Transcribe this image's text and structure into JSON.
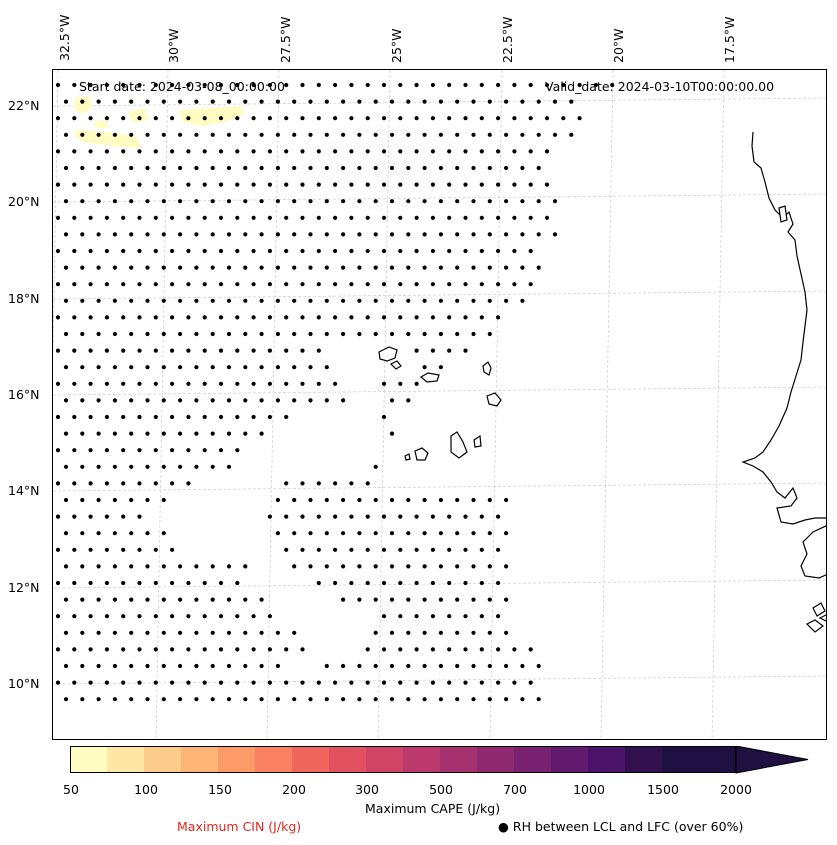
{
  "map": {
    "start_date": "Start date: 2024-03-08_00:00:00",
    "valid_date": "Valid_date: 2024-03-10T00:00:00.00",
    "lon_labels": [
      "32.5°W",
      "30°W",
      "27.5°W",
      "25°W",
      "22.5°W",
      "20°W",
      "17.5°W"
    ],
    "lat_labels": [
      "22°N",
      "20°N",
      "18°N",
      "16°N",
      "14°N",
      "12°N",
      "10°N"
    ],
    "land_color": "#ffffff",
    "coast_color": "#000000",
    "grid_color": "#cccccc"
  },
  "colorbar": {
    "ticks": [
      "50",
      "100",
      "150",
      "200",
      "300",
      "500",
      "700",
      "1000",
      "1500",
      "2000"
    ],
    "colors": [
      "#fffdc2",
      "#fee6a4",
      "#fdcc8a",
      "#fdb578",
      "#fc9b68",
      "#f98060",
      "#f1665c",
      "#e2515f",
      "#d04465",
      "#bb3a6b",
      "#a5316f",
      "#8f2a71",
      "#792171",
      "#621a6f",
      "#4b126a",
      "#33104e",
      "#1e1041"
    ],
    "label": "Maximum CAPE (J/kg)"
  },
  "legend": {
    "cin_label": "Maximum CIN (J/kg)",
    "rh_label": "● RH between LCL and LFC (over 60%)",
    "cin_color": "#e8261c"
  }
}
